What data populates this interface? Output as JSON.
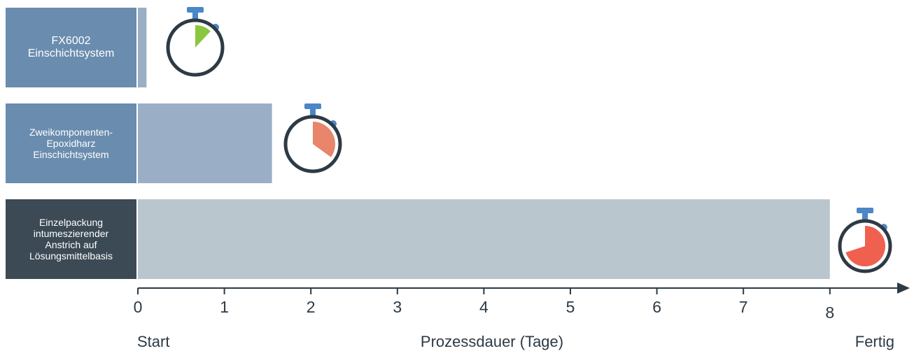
{
  "chart_data": {
    "type": "bar",
    "orientation": "horizontal",
    "categories": [
      "FX6002\nEinschichtsystem",
      "Zweikomponenten-\nEpoxidharz\nEinschichtsystem",
      "Einzelpackung\nintumeszierender\nAnstrich auf\nLösungsmittelbasis"
    ],
    "values": [
      0.1,
      1.55,
      8.0
    ],
    "xlabel": "Prozessdauer (Tage)",
    "xlim": [
      0,
      8.8
    ],
    "x_ticks": [
      "0",
      "1",
      "2",
      "3",
      "4",
      "5",
      "6",
      "7",
      "8"
    ],
    "start_label": "Start",
    "end_label": "Fertig",
    "grid": false,
    "legend": "none",
    "colors": {
      "label_boxes": [
        "#6a8cae",
        "#6a8cae",
        "#3c4a55"
      ],
      "bars": [
        "#9aaec6",
        "#9aaec6",
        "#b9c6ce"
      ],
      "stopwatch_fill": [
        "#8cc63f",
        "#e8856a",
        "#f0604f"
      ],
      "stopwatch_ring": "#2e3a44",
      "stopwatch_button": "#4a86c8",
      "axis": "#2e3a44"
    },
    "stopwatch_fill_fraction": [
      0.12,
      0.35,
      0.7
    ]
  }
}
